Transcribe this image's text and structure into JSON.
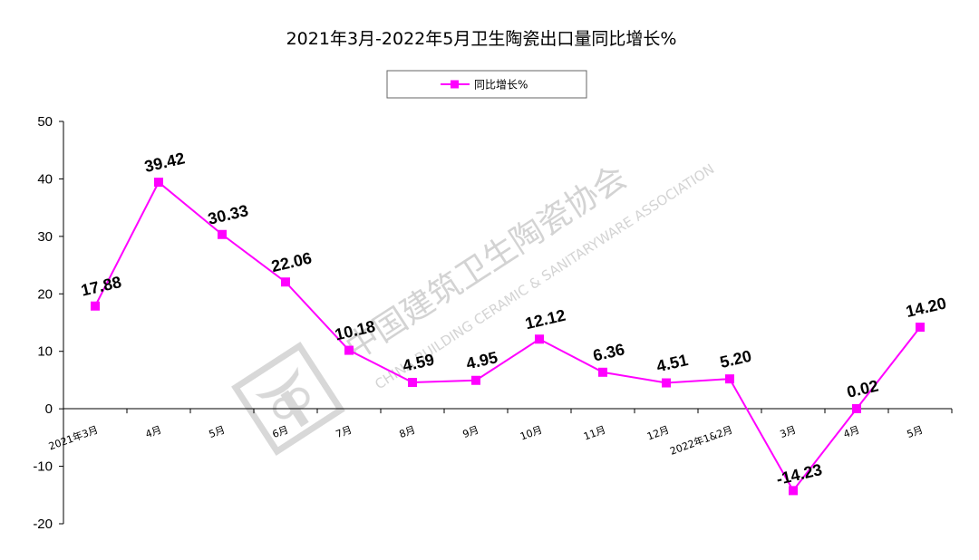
{
  "chart_data": {
    "type": "line",
    "title": "2021年3月-2022年5月卫生陶瓷出口量同比增长%",
    "xlabel": "",
    "ylabel": "",
    "ylim": [
      -20,
      50
    ],
    "yticks": [
      50,
      40,
      30,
      20,
      10,
      0,
      -10,
      -20
    ],
    "legend_position": "top-center",
    "grid": false,
    "categories": [
      "2021年3月",
      "4月",
      "5月",
      "6月",
      "7月",
      "8月",
      "9月",
      "10月",
      "11月",
      "12月",
      "2022年1&2月",
      "3月",
      "4月",
      "5月"
    ],
    "series": [
      {
        "name": "同比增长%",
        "color": "#ff00ff",
        "values": [
          17.88,
          39.42,
          30.33,
          22.06,
          10.18,
          4.59,
          4.95,
          12.12,
          6.36,
          4.51,
          5.2,
          -14.23,
          0.02,
          14.2
        ],
        "labels": [
          "17.88",
          "39.42",
          "30.33",
          "22.06",
          "10.18",
          "4.59",
          "4.95",
          "12.12",
          "6.36",
          "4.51",
          "5.20",
          "-14.23",
          "0.02",
          "14.20"
        ]
      }
    ]
  },
  "watermark": {
    "chinese": "中国建筑卫生陶瓷协会",
    "english": "CHINA BUILDING CERAMIC & SANITARYWARE ASSOCIATION"
  }
}
